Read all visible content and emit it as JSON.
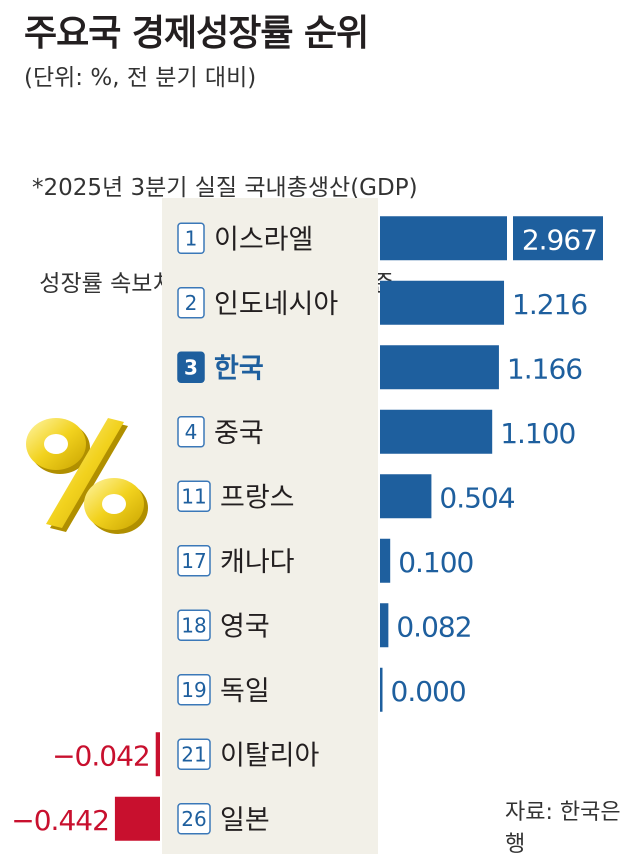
{
  "header": {
    "title": "주요국 경제성장률 순위",
    "unit": "(단위: %, 전 분기 대비)",
    "note_line1": "*2025년 3분기 실질 국내총생산(GDP)",
    "note_line2": " 성장률 속보치를 발표한 26개국 기준"
  },
  "footer": {
    "source": "자료: 한국은행"
  },
  "icons": {
    "decoration": "percent-3d-icon"
  },
  "colors": {
    "positive": "#1e5f9e",
    "negative": "#c8102e",
    "highlight": "#1e5f9e",
    "panel": "#f2f0e8"
  },
  "chart_data": {
    "type": "bar",
    "orientation": "horizontal",
    "categories": [
      "이스라엘",
      "인도네시아",
      "한국",
      "중국",
      "프랑스",
      "캐나다",
      "영국",
      "독일",
      "이탈리아",
      "일본"
    ],
    "ranks": [
      "1",
      "2",
      "3",
      "4",
      "11",
      "17",
      "18",
      "19",
      "21",
      "26"
    ],
    "values": [
      2.967,
      1.216,
      1.166,
      1.1,
      0.504,
      0.1,
      0.082,
      0.0,
      -0.042,
      -0.442
    ],
    "value_labels": [
      "2.967",
      "1.216",
      "1.166",
      "1.100",
      "0.504",
      "0.100",
      "0.082",
      "0.000",
      "−0.042",
      "−0.442"
    ],
    "highlight": "한국",
    "broken_axis_category": "이스라엘"
  }
}
